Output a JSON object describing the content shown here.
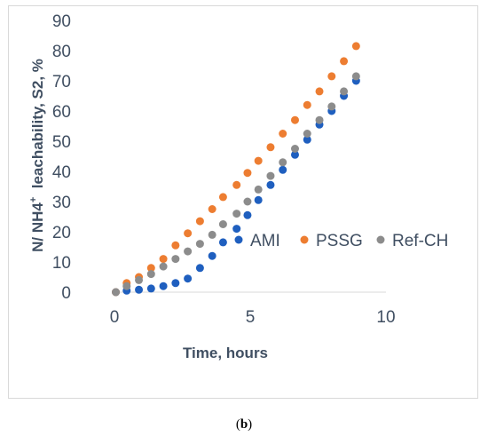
{
  "caption": {
    "open": "(",
    "letter": "b",
    "close": ")"
  },
  "chart_data": {
    "type": "scatter",
    "title": "",
    "xlabel": "Time, hours",
    "ylabel_parts": {
      "before": "N/ NH4",
      "sup": "+",
      "after": "  leachability, S2, %"
    },
    "xlim": [
      0,
      10
    ],
    "ylim": [
      0,
      90
    ],
    "xticks": [
      0,
      5,
      10
    ],
    "yticks": [
      0,
      10,
      20,
      30,
      40,
      50,
      60,
      70,
      80,
      90
    ],
    "grid": false,
    "legend_position": "center-right",
    "series": [
      {
        "name": "AMI",
        "color": "#1f5fbf",
        "x": [
          0.05,
          0.45,
          0.9,
          1.35,
          1.8,
          2.25,
          2.7,
          3.15,
          3.6,
          4.0,
          4.5,
          4.9,
          5.3,
          5.75,
          6.2,
          6.65,
          7.1,
          7.55,
          8.0,
          8.45,
          8.9
        ],
        "y": [
          0,
          0.5,
          0.8,
          1.2,
          2,
          3,
          4.5,
          8,
          12,
          16.5,
          21,
          25.5,
          30.5,
          35.5,
          40.5,
          45.5,
          50.5,
          55.5,
          60,
          65,
          70
        ]
      },
      {
        "name": "PSSG",
        "color": "#ed7d31",
        "x": [
          0.05,
          0.45,
          0.9,
          1.35,
          1.8,
          2.25,
          2.7,
          3.15,
          3.6,
          4.0,
          4.5,
          4.9,
          5.3,
          5.75,
          6.2,
          6.65,
          7.1,
          7.55,
          8.0,
          8.45,
          8.9
        ],
        "y": [
          0,
          3,
          5,
          8,
          11,
          15.5,
          19.5,
          23.5,
          27.5,
          31.5,
          35.5,
          39.5,
          43.5,
          48,
          52.5,
          57,
          62,
          66.5,
          71.5,
          76.5,
          81.5
        ]
      },
      {
        "name": "Ref-CH",
        "color": "#8c8c8c",
        "x": [
          0.05,
          0.45,
          0.9,
          1.35,
          1.8,
          2.25,
          2.7,
          3.15,
          3.6,
          4.0,
          4.5,
          4.9,
          5.3,
          5.75,
          6.2,
          6.65,
          7.1,
          7.55,
          8.0,
          8.45,
          8.9
        ],
        "y": [
          0,
          2,
          4,
          6,
          8.5,
          11,
          13.5,
          16,
          19,
          22.5,
          26,
          30,
          34,
          38.5,
          43,
          47.5,
          52.5,
          57,
          61.5,
          66.5,
          71.5
        ]
      }
    ]
  }
}
